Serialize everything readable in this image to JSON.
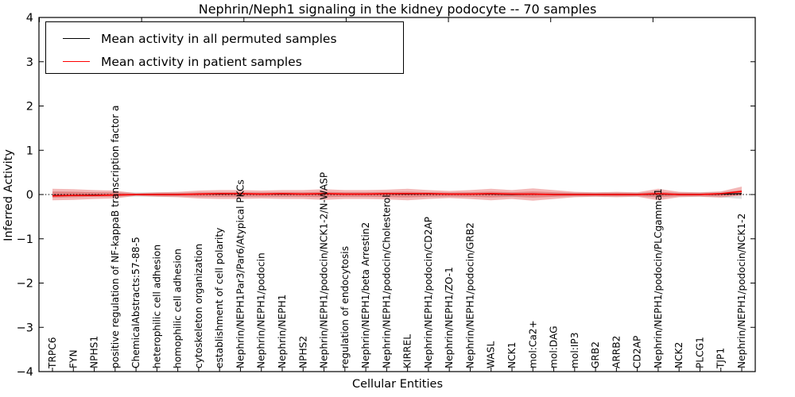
{
  "title": "Nephrin/Neph1 signaling in the kidney podocyte -- 70 samples",
  "legend": {
    "items": [
      {
        "label": "Mean activity in all permuted samples",
        "color": "#000000"
      },
      {
        "label": "Mean activity in patient samples",
        "color": "#ff0000"
      }
    ]
  },
  "axes": {
    "xlabel": "Cellular Entities",
    "ylabel": "Inferred Activity",
    "ytick_labels": [
      "4",
      "3",
      "2",
      "1",
      "0",
      "−1",
      "−2",
      "−3",
      "−4"
    ]
  },
  "chart_data": {
    "type": "line",
    "title": "Nephrin/Neph1 signaling in the kidney podocyte -- 70 samples",
    "xlabel": "Cellular Entities",
    "ylabel": "Inferred Activity",
    "ylim": [
      -4,
      4
    ],
    "yticks": [
      4,
      3,
      2,
      1,
      0,
      -1,
      -2,
      -3,
      -4
    ],
    "grid": false,
    "legend_position": "upper left",
    "zero_line": true,
    "categories": [
      "TRPC6",
      "FYN",
      "NPHS1",
      "positive regulation of NF-kappaB transcription factor a",
      "ChemicalAbstracts:57-88-5",
      "heterophilic cell adhesion",
      "homophilic cell adhesion",
      "cytoskeleton organization",
      "establishment of cell polarity",
      "Nephrin/NEPH1Par3/Par6/Atypical PKCs",
      "Nephrin/NEPH1/podocin",
      "Nephrin/NEPH1",
      "NPHS2",
      "Nephrin/NEPH1/podocin/NCK1-2/N-WASP",
      "regulation of endocytosis",
      "Nephrin/NEPH1/beta Arrestin2",
      "Nephrin/NEPH1/podocin/Cholesterol",
      "KIRREL",
      "Nephrin/NEPH1/podocin/CD2AP",
      "Nephrin/NEPH1/ZO-1",
      "Nephrin/NEPH1/podocin/GRB2",
      "WASL",
      "NCK1",
      "mol:Ca2+",
      "mol:DAG",
      "mol:IP3",
      "GRB2",
      "ARRB2",
      "CD2AP",
      "Nephrin/NEPH1/podocin/PLCgamma1",
      "NCK2",
      "PLCG1",
      "TJP1",
      "Nephrin/NEPH1/podocin/NCK1-2"
    ],
    "series": [
      {
        "name": "Mean activity in all permuted samples",
        "color": "#000000",
        "values": [
          -0.02,
          -0.02,
          -0.01,
          -0.01,
          0,
          0,
          0,
          0.01,
          0.01,
          0.02,
          0.01,
          0.01,
          0.01,
          0.02,
          0.01,
          0.01,
          0.02,
          0.01,
          0.02,
          0.01,
          0.01,
          0.01,
          0,
          0.01,
          0,
          0,
          0,
          0,
          0,
          0.01,
          0,
          0,
          0.01,
          0.02
        ]
      },
      {
        "name": "Mean activity in patient samples",
        "color": "#ff0000",
        "values": [
          -0.03,
          -0.02,
          -0.02,
          -0.01,
          0,
          0,
          0,
          0.01,
          0.02,
          0.02,
          0.01,
          0.02,
          0.01,
          0.02,
          0.01,
          0.01,
          0.02,
          0.02,
          0.02,
          0.01,
          0.01,
          0.02,
          0.01,
          0.01,
          0,
          0,
          0,
          0,
          0,
          0.02,
          0,
          0,
          0.02,
          0.07
        ]
      }
    ],
    "bands": [
      {
        "name": "permuted-samples-range",
        "color": "#9a9a9a",
        "opacity": 0.32,
        "upper": [
          0.07,
          0.06,
          0.05,
          0.05,
          0.05,
          0.05,
          0.05,
          0.05,
          0.05,
          0.05,
          0.05,
          0.05,
          0.05,
          0.05,
          0.05,
          0.05,
          0.05,
          0.05,
          0.05,
          0.05,
          0.05,
          0.05,
          0.05,
          0.05,
          0.05,
          0.05,
          0.05,
          0.05,
          0.05,
          0.05,
          0.05,
          0.05,
          0.06,
          0.1
        ],
        "lower": [
          -0.07,
          -0.06,
          -0.05,
          -0.05,
          -0.05,
          -0.05,
          -0.05,
          -0.05,
          -0.05,
          -0.05,
          -0.05,
          -0.05,
          -0.05,
          -0.05,
          -0.05,
          -0.05,
          -0.05,
          -0.05,
          -0.05,
          -0.05,
          -0.05,
          -0.05,
          -0.05,
          -0.05,
          -0.05,
          -0.05,
          -0.05,
          -0.05,
          -0.05,
          -0.05,
          -0.05,
          -0.05,
          -0.06,
          -0.1
        ]
      },
      {
        "name": "patient-samples-range",
        "color": "#e25555",
        "opacity": 0.42,
        "upper": [
          0.13,
          0.12,
          0.1,
          0.09,
          0.03,
          0.05,
          0.06,
          0.09,
          0.1,
          0.1,
          0.09,
          0.1,
          0.1,
          0.12,
          0.1,
          0.1,
          0.11,
          0.13,
          0.1,
          0.08,
          0.1,
          0.13,
          0.1,
          0.14,
          0.1,
          0.06,
          0.05,
          0.06,
          0.05,
          0.13,
          0.06,
          0.05,
          0.07,
          0.18
        ],
        "lower": [
          -0.13,
          -0.12,
          -0.1,
          -0.09,
          -0.03,
          -0.05,
          -0.06,
          -0.09,
          -0.1,
          -0.1,
          -0.09,
          -0.1,
          -0.1,
          -0.12,
          -0.1,
          -0.1,
          -0.11,
          -0.13,
          -0.1,
          -0.08,
          -0.1,
          -0.13,
          -0.1,
          -0.14,
          -0.1,
          -0.06,
          -0.05,
          -0.06,
          -0.05,
          -0.13,
          -0.06,
          -0.05,
          -0.07,
          -0.02
        ]
      }
    ]
  }
}
